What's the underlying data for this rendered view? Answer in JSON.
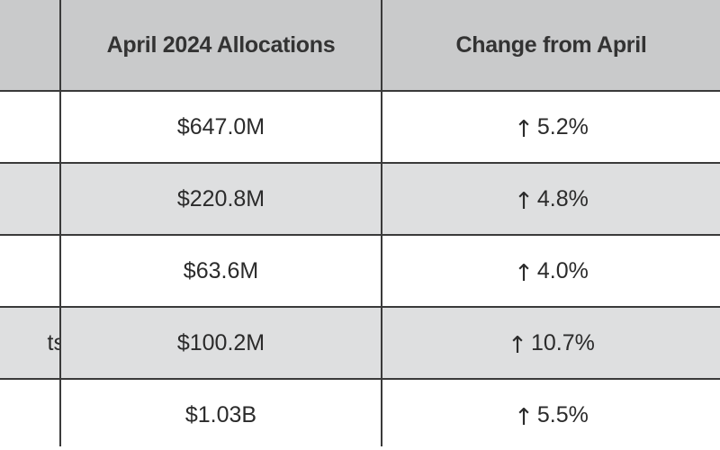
{
  "table": {
    "headers": [
      "",
      "April 2024 Allocations",
      "Change from April"
    ],
    "rows": [
      {
        "label": "",
        "allocation": "$647.0M",
        "arrow": "↑",
        "change": "5.2%"
      },
      {
        "label": "",
        "allocation": "$220.8M",
        "arrow": "↑",
        "change": "4.8%"
      },
      {
        "label": "",
        "allocation": "$63.6M",
        "arrow": "↑",
        "change": "4.0%"
      },
      {
        "label": "ts",
        "allocation": "$100.2M",
        "arrow": "↑",
        "change": "10.7%"
      },
      {
        "label": "",
        "allocation": "$1.03B",
        "arrow": "↑",
        "change": "5.5%"
      }
    ]
  },
  "colors": {
    "header_bg": "#c9cacb",
    "alt_row_bg": "#dedfe0",
    "border": "#3a3a3a",
    "text": "#2b2b2b"
  }
}
